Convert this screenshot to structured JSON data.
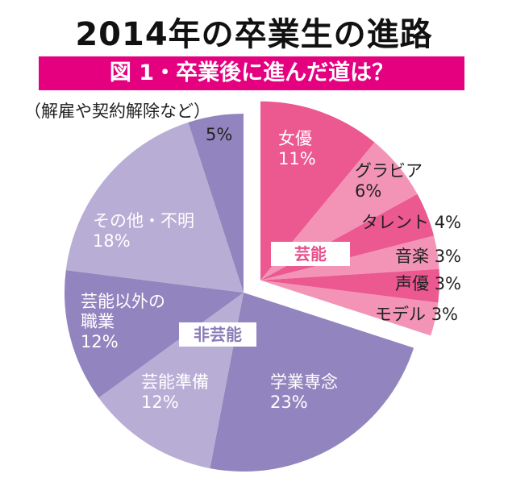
{
  "chart_data": {
    "type": "pie",
    "title": "2014年の卒業生の進路",
    "subtitle": "図 1・卒業後に進んだ道は？",
    "slices": [
      {
        "label": "女優",
        "value": 11,
        "group": "芸能",
        "color": "#ec5890"
      },
      {
        "label": "グラビア",
        "value": 6,
        "group": "芸能",
        "color": "#f394b6"
      },
      {
        "label": "タレント",
        "value": 4,
        "group": "芸能",
        "color": "#ec5890"
      },
      {
        "label": "音楽",
        "value": 3,
        "group": "芸能",
        "color": "#f394b6"
      },
      {
        "label": "声優",
        "value": 3,
        "group": "芸能",
        "color": "#ec5890"
      },
      {
        "label": "モデル",
        "value": 3,
        "group": "芸能",
        "color": "#f394b6"
      },
      {
        "label": "学業専念",
        "value": 23,
        "group": "非芸能",
        "color": "#9285bf"
      },
      {
        "label": "芸能準備",
        "value": 12,
        "group": "非芸能",
        "color": "#b8aed5"
      },
      {
        "label": "芸能以外の職業",
        "value": 12,
        "group": "非芸能",
        "color": "#9285bf"
      },
      {
        "label": "その他・不明",
        "value": 18,
        "group": "非芸能",
        "color": "#b8aed5"
      },
      {
        "label": "（解雇や契約解除など）",
        "value": 5,
        "group": "非芸能",
        "color": "#9285bf"
      }
    ],
    "groups": [
      "芸能",
      "非芸能"
    ],
    "group_colors": {
      "芸能": "#e6508a",
      "非芸能": "#8a7cb8"
    },
    "exploded_group": "芸能",
    "banner_color": "#e4007f"
  },
  "labels": {
    "s0": "女優",
    "p0": "11%",
    "s1": "グラビア",
    "p1": "6%",
    "s2": "タレント",
    "p2": "4%",
    "s3": "音楽",
    "p3": "3%",
    "s4": "声優",
    "p4": "3%",
    "s5": "モデル",
    "p5": "3%",
    "s6": "学業専念",
    "p6": "23%",
    "s7": "芸能準備",
    "p7": "12%",
    "s8a": "芸能以外の",
    "s8b": "職業",
    "p8": "12%",
    "s9": "その他・不明",
    "p9": "18%",
    "s10": "（解雇や契約解除など）",
    "p10": "5%"
  }
}
